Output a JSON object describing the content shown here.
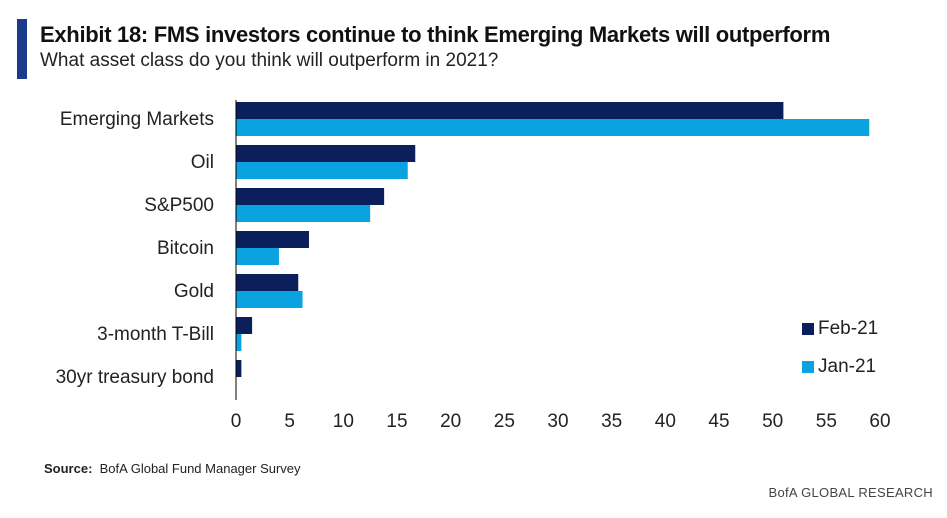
{
  "header": {
    "title": "Exhibit 18: FMS investors continue to think Emerging Markets will outperform",
    "subtitle": "What asset class do you think will outperform in 2021?"
  },
  "footer": {
    "source_label": "Source:",
    "source_text": "BofA Global Fund Manager Survey",
    "brand": "BofA GLOBAL RESEARCH"
  },
  "colors": {
    "accent": "#1A3A8C",
    "feb": "#0B1F5C",
    "jan": "#0AA3E0"
  },
  "chart_data": {
    "type": "bar",
    "orientation": "horizontal",
    "title": "Exhibit 18: FMS investors continue to think Emerging Markets will outperform",
    "subtitle": "What asset class do you think will outperform in 2021?",
    "categories": [
      "Emerging Markets",
      "Oil",
      "S&P500",
      "Bitcoin",
      "Gold",
      "3-month T-Bill",
      "30yr treasury bond"
    ],
    "series": [
      {
        "name": "Feb-21",
        "color": "#0B1F5C",
        "values": [
          51,
          16.7,
          13.8,
          6.8,
          5.8,
          1.5,
          0.5
        ]
      },
      {
        "name": "Jan-21",
        "color": "#0AA3E0",
        "values": [
          59,
          16,
          12.5,
          4,
          6.2,
          0.5,
          0
        ]
      }
    ],
    "xlim": [
      0,
      60
    ],
    "xticks": [
      0,
      5,
      10,
      15,
      20,
      25,
      30,
      35,
      40,
      45,
      50,
      55,
      60
    ],
    "grid": false,
    "legend": "bottom-right"
  }
}
